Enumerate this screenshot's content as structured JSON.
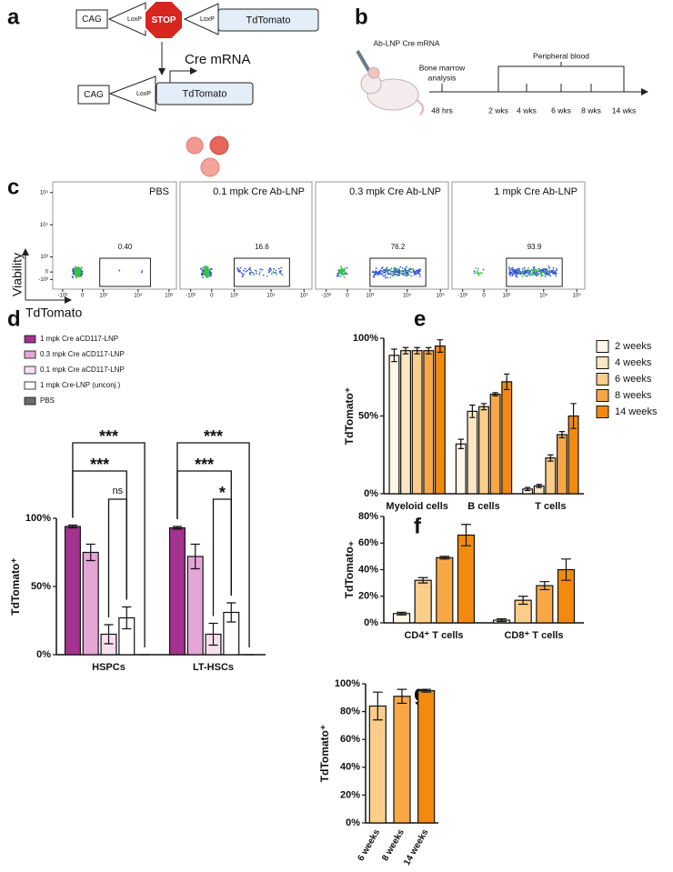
{
  "panel_labels": [
    "a",
    "b",
    "c",
    "d",
    "e",
    "f",
    "g"
  ],
  "diagram_a": {
    "promoter": "CAG",
    "lox_label": "LoxP",
    "stop": "STOP",
    "reporter": "TdTomato",
    "step": "Cre mRNA"
  },
  "timeline_b": {
    "treatment": "Ab-LNP Cre mRNA",
    "bm_label": [
      "Bone marrow",
      "analysis"
    ],
    "pb_label": "Peripheral blood",
    "timepoints": [
      "48 hrs",
      "2 wks",
      "4 wks",
      "6 wks",
      "8 wks",
      "14 wks"
    ]
  },
  "flow_c": {
    "y_axis_label": "Viability",
    "x_axis_label": "TdTomato",
    "y_ticks": [
      "10⁵",
      "10⁴",
      "10³",
      "0",
      "-10³"
    ],
    "x_ticks": [
      "-10³",
      "0",
      "10³",
      "10⁴",
      "10⁵"
    ],
    "plots": [
      {
        "title": "PBS",
        "gate_value": "0.40"
      },
      {
        "title": "0.1 mpk Cre Ab-LNP",
        "gate_value": "16.6"
      },
      {
        "title": "0.3 mpk Cre Ab-LNP",
        "gate_value": "76.2"
      },
      {
        "title": "1 mpk Cre Ab-LNP",
        "gate_value": "93.9"
      }
    ]
  },
  "chart_data": [
    {
      "type": "bar",
      "y_label": "TdTomato⁺",
      "categories": [
        "HSPCs",
        "LT-HSCs"
      ],
      "series": [
        {
          "name": "1 mpk Cre aCD117-LNP",
          "color": "#a3338f",
          "values": [
            94,
            93
          ],
          "errors": [
            1,
            1
          ]
        },
        {
          "name": "0.3 mpk Cre aCD117-LNP",
          "color": "#e3a6d6",
          "values": [
            75,
            72
          ],
          "errors": [
            6,
            9
          ]
        },
        {
          "name": "0.1 mpk Cre aCD117-LNP",
          "color": "#f6e0f0",
          "values": [
            15,
            15
          ],
          "errors": [
            7,
            8
          ]
        },
        {
          "name": "1 mpk Cre-LNP (unconj.)",
          "color": "#ffffff",
          "values": [
            27,
            31
          ],
          "errors": [
            8,
            7
          ]
        },
        {
          "name": "PBS",
          "color": "#6b6b6b",
          "values": [
            0,
            0
          ],
          "errors": [
            0,
            0
          ]
        }
      ],
      "ylim": [
        0,
        100
      ],
      "yticks": [
        {
          "value": 0,
          "label": "0%"
        },
        {
          "value": 50,
          "label": "50%"
        },
        {
          "value": 100,
          "label": "100%"
        }
      ],
      "annotations": [
        "***",
        "***",
        "ns",
        "***",
        "***",
        "*"
      ],
      "legend": "top-left"
    },
    {
      "type": "bar",
      "y_label": "TdTomato⁺",
      "categories": [
        "Myeloid cells",
        "B cells",
        "T cells"
      ],
      "series": [
        {
          "name": "2 weeks",
          "color": "#fff7e6",
          "values": [
            89,
            32,
            3
          ],
          "errors": [
            4,
            3,
            1
          ]
        },
        {
          "name": "4 weeks",
          "color": "#fde6c2",
          "values": [
            92,
            53,
            5
          ],
          "errors": [
            2,
            4,
            1
          ]
        },
        {
          "name": "6 weeks",
          "color": "#fbcd8a",
          "values": [
            92,
            56,
            23
          ],
          "errors": [
            2,
            2,
            2
          ]
        },
        {
          "name": "8 weeks",
          "color": "#f8a747",
          "values": [
            92,
            64,
            38
          ],
          "errors": [
            2,
            1,
            2
          ]
        },
        {
          "name": "14 weeks",
          "color": "#f28a10",
          "values": [
            95,
            72,
            50
          ],
          "errors": [
            4,
            5,
            8
          ]
        }
      ],
      "ylim": [
        0,
        100
      ],
      "yticks": [
        {
          "value": 0,
          "label": "0%"
        },
        {
          "value": 50,
          "label": "50%"
        },
        {
          "value": 100,
          "label": "100%"
        }
      ],
      "legend": "right"
    },
    {
      "type": "bar",
      "y_label": "TdTomato₊",
      "categories": [
        "CD4⁺ T cells",
        "CD8⁺ T cells"
      ],
      "series": [
        {
          "color": "#fff7e6",
          "values": [
            7,
            2
          ],
          "errors": [
            1,
            1
          ]
        },
        {
          "color": "#fbcd8a",
          "values": [
            32,
            17
          ],
          "errors": [
            2,
            3
          ]
        },
        {
          "color": "#f8a747",
          "values": [
            49,
            28
          ],
          "errors": [
            1,
            3
          ]
        },
        {
          "color": "#f28a10",
          "values": [
            66,
            40
          ],
          "errors": [
            8,
            8
          ]
        }
      ],
      "ylim": [
        0,
        80
      ],
      "yticks": [
        {
          "value": 0,
          "label": "0%"
        },
        {
          "value": 20,
          "label": "20%"
        },
        {
          "value": 40,
          "label": "40%"
        },
        {
          "value": 60,
          "label": "60%"
        },
        {
          "value": 80,
          "label": "80%"
        }
      ]
    },
    {
      "type": "bar",
      "y_label": "TdTomato⁺",
      "categories": [
        "6 weeks",
        "8 weeks",
        "14 weeks"
      ],
      "values": [
        84,
        91,
        95
      ],
      "errors": [
        10,
        5,
        1
      ],
      "colors": [
        "#fbcd8a",
        "#f8a747",
        "#f28a10"
      ],
      "ylim": [
        0,
        100
      ],
      "yticks": [
        {
          "value": 0,
          "label": "0%"
        },
        {
          "value": 20,
          "label": "20%"
        },
        {
          "value": 40,
          "label": "40%"
        },
        {
          "value": 60,
          "label": "60%"
        },
        {
          "value": 80,
          "label": "80%"
        },
        {
          "value": 100,
          "label": "100%"
        }
      ]
    }
  ]
}
